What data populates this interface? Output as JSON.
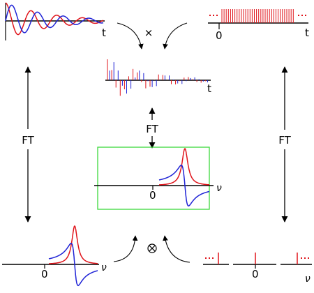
{
  "labels": {
    "ft_left": "FT",
    "ft_center": "FT",
    "ft_right": "FT",
    "t": "t",
    "nu": "ν",
    "zero": "0",
    "times": "×",
    "convolve": "⊗"
  },
  "colors": {
    "red": "#e0141b",
    "blue": "#1f23d6",
    "axis": "#000000",
    "highlight_box": "#3cd83c"
  }
}
